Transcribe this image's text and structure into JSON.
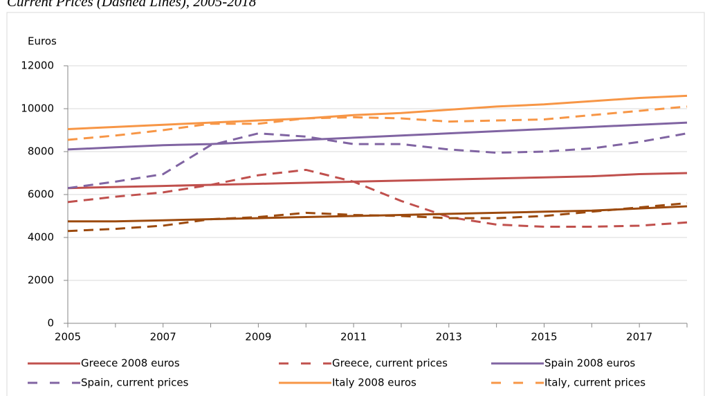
{
  "chart_data": {
    "type": "line",
    "title": "Current Prices (Dashed Lines), 2005-2018",
    "y_label": "Euros",
    "x": [
      2005,
      2006,
      2007,
      2008,
      2009,
      2010,
      2011,
      2012,
      2013,
      2014,
      2015,
      2016,
      2017,
      2018
    ],
    "xlim": [
      2005,
      2018
    ],
    "xticks": [
      2005,
      2007,
      2009,
      2011,
      2013,
      2015,
      2017
    ],
    "ylim": [
      0,
      12000
    ],
    "yticks": [
      0,
      2000,
      4000,
      6000,
      8000,
      10000,
      12000
    ],
    "grid": true,
    "legend": "bottom",
    "series": [
      {
        "name": "Greece 2008 euros",
        "color": "#c0504d",
        "style": "solid",
        "values": [
          6300,
          6350,
          6400,
          6450,
          6500,
          6550,
          6600,
          6650,
          6700,
          6750,
          6800,
          6850,
          6950,
          7000
        ]
      },
      {
        "name": "Greece, current prices",
        "color": "#c0504d",
        "style": "dashed",
        "values": [
          5650,
          5900,
          6100,
          6450,
          6900,
          7150,
          6600,
          5700,
          4950,
          4600,
          4500,
          4500,
          4550,
          4700
        ]
      },
      {
        "name": "Spain 2008 euros",
        "color": "#8064a2",
        "style": "solid",
        "values": [
          8100,
          8200,
          8300,
          8350,
          8450,
          8550,
          8650,
          8750,
          8850,
          8950,
          9050,
          9150,
          9250,
          9350
        ]
      },
      {
        "name": "Spain, current prices",
        "color": "#8064a2",
        "style": "dashed",
        "values": [
          6300,
          6600,
          6950,
          8300,
          8850,
          8700,
          8350,
          8350,
          8100,
          7950,
          8000,
          8150,
          8450,
          8850
        ]
      },
      {
        "name": "Italy 2008 euros",
        "color": "#f79646",
        "style": "solid",
        "values": [
          9050,
          9150,
          9250,
          9350,
          9450,
          9550,
          9700,
          9800,
          9950,
          10100,
          10200,
          10350,
          10500,
          10600
        ]
      },
      {
        "name": "Italy, current prices",
        "color": "#f79646",
        "style": "dashed",
        "values": [
          8550,
          8750,
          9000,
          9300,
          9300,
          9550,
          9600,
          9550,
          9400,
          9450,
          9500,
          9700,
          9900,
          10100
        ]
      },
      {
        "color": "#9c4a0e",
        "style": "solid",
        "values": [
          4750,
          4750,
          4800,
          4850,
          4900,
          4950,
          5000,
          5050,
          5100,
          5150,
          5200,
          5250,
          5350,
          5450
        ]
      },
      {
        "color": "#9c4a0e",
        "style": "dashed",
        "values": [
          4300,
          4400,
          4550,
          4850,
          4950,
          5150,
          5050,
          5000,
          4900,
          4900,
          5000,
          5200,
          5400,
          5600
        ]
      }
    ]
  }
}
